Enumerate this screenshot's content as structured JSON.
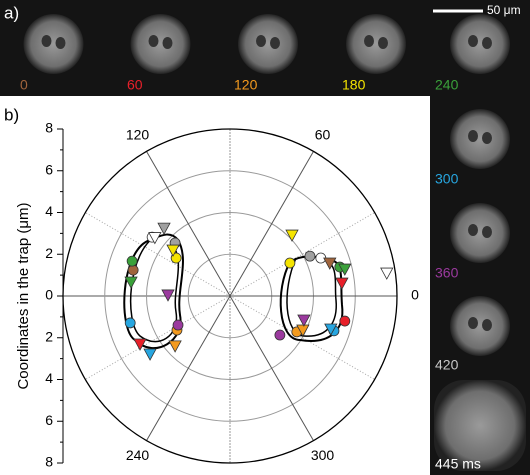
{
  "panel_a": {
    "label": "a)",
    "scale_bar": "50 μm",
    "frames": [
      {
        "label": "0",
        "color": "#a0643c"
      },
      {
        "label": "60",
        "color": "#e8202a"
      },
      {
        "label": "120",
        "color": "#f39a1e"
      },
      {
        "label": "180",
        "color": "#f5e400"
      },
      {
        "label": "240",
        "color": "#3aa13a"
      },
      {
        "label": "300",
        "color": "#27a6e0"
      },
      {
        "label": "360",
        "color": "#9b3a9e"
      },
      {
        "label": "420",
        "color": "#c8c8c8"
      },
      {
        "label": "445 ms",
        "color": "#ffffff"
      }
    ]
  },
  "chart_data": {
    "type": "scatter",
    "panel_label": "b)",
    "y_label": "Coordinates in the trap (μm)",
    "xlim": [
      -8,
      8
    ],
    "ylim": [
      -8,
      8
    ],
    "yticks": [
      {
        "value": -8,
        "label": "8"
      },
      {
        "value": -6,
        "label": "6"
      },
      {
        "value": -4,
        "label": "4"
      },
      {
        "value": -2,
        "label": "2"
      },
      0,
      2,
      4,
      6,
      8
    ],
    "rgrid": [
      2,
      4,
      6
    ],
    "angle_ticks": [
      0,
      60,
      120,
      240,
      300
    ],
    "series": [
      {
        "marker": "circle",
        "color": "#a0643c",
        "x": [
          -4.64
        ],
        "y": [
          1.24
        ]
      },
      {
        "marker": "circle",
        "color": "#e8202a",
        "x": [
          5.5
        ],
        "y": [
          -1.2
        ]
      },
      {
        "marker": "circle",
        "color": "#f39a1e",
        "x": [
          -2.54,
          3.2
        ],
        "y": [
          -1.63,
          -1.72
        ]
      },
      {
        "marker": "circle",
        "color": "#f5e400",
        "x": [
          -2.58,
          2.87
        ],
        "y": [
          1.82,
          1.58
        ]
      },
      {
        "marker": "circle",
        "color": "#3aa13a",
        "x": [
          -4.69,
          5.26
        ],
        "y": [
          1.67,
          1.39
        ]
      },
      {
        "marker": "circle",
        "color": "#27a6e0",
        "x": [
          -4.78,
          4.98
        ],
        "y": [
          -1.29,
          -1.67
        ]
      },
      {
        "marker": "circle",
        "color": "#9b3a9e",
        "x": [
          -2.49,
          2.39
        ],
        "y": [
          -1.39,
          -1.87
        ]
      },
      {
        "marker": "circle",
        "color": "#a0a0a0",
        "x": [
          -2.63,
          3.83
        ],
        "y": [
          2.54,
          1.91
        ]
      },
      {
        "marker": "circle",
        "color": "#ffffff",
        "x": [
          -3.73,
          4.35
        ],
        "y": [
          2.82,
          1.82
        ]
      },
      {
        "marker": "triangle",
        "color": "#a0643c",
        "x": [
          4.78
        ],
        "y": [
          1.58
        ]
      },
      {
        "marker": "triangle",
        "color": "#e8202a",
        "x": [
          -4.31,
          5.36
        ],
        "y": [
          -2.3,
          0.62
        ]
      },
      {
        "marker": "triangle",
        "color": "#f39a1e",
        "x": [
          -2.63,
          3.49
        ],
        "y": [
          -2.39,
          -1.63
        ]
      },
      {
        "marker": "triangle",
        "color": "#f5e400",
        "x": [
          -2.73,
          2.97
        ],
        "y": [
          2.2,
          2.92
        ]
      },
      {
        "marker": "triangle",
        "color": "#3aa13a",
        "x": [
          -4.74,
          5.5
        ],
        "y": [
          0.67,
          1.29
        ]
      },
      {
        "marker": "triangle",
        "color": "#27a6e0",
        "x": [
          -3.83,
          4.83
        ],
        "y": [
          -2.78,
          -1.58
        ]
      },
      {
        "marker": "triangle",
        "color": "#9b3a9e",
        "x": [
          -2.97,
          3.54
        ],
        "y": [
          0.05,
          -1.15
        ]
      },
      {
        "marker": "triangle",
        "color": "#a0a0a0",
        "x": [
          -3.16
        ],
        "y": [
          3.25
        ]
      },
      {
        "marker": "triangle",
        "color": "#ffffff",
        "x": [
          -3.6,
          7.51
        ],
        "y": [
          2.8,
          1.1
        ]
      }
    ]
  }
}
